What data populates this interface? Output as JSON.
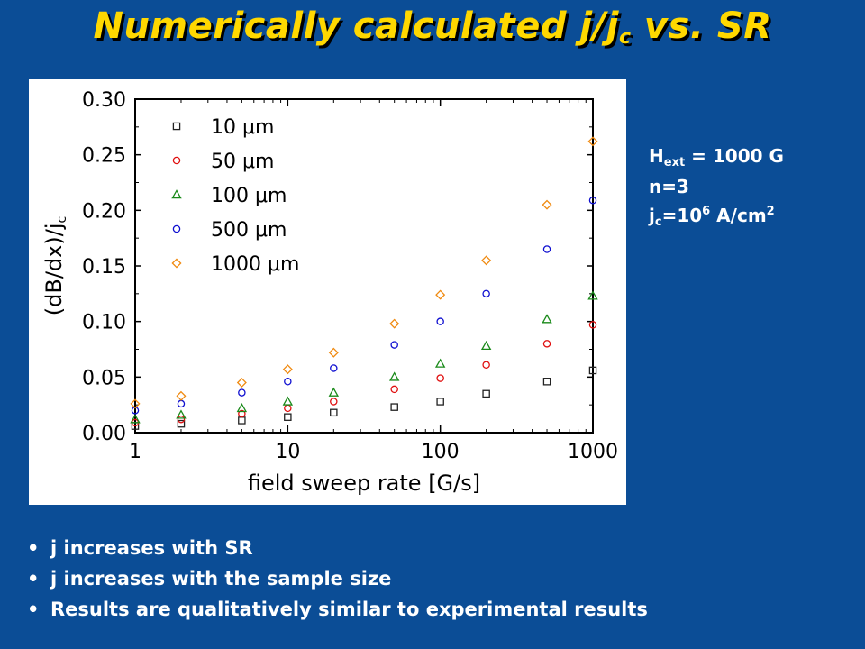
{
  "title": {
    "main": "Numerically calculated j/j",
    "sub": "c",
    "tail": " vs. SR"
  },
  "params": {
    "hext_prefix": "H",
    "hext_sub": "ext",
    "hext_value": " = 1000 G",
    "n_line": "n=3",
    "jc_prefix": "j",
    "jc_sub": "c",
    "jc_mid": "=10",
    "jc_sup": "6",
    "jc_unit": " A/cm",
    "jc_unit_sup": "2"
  },
  "bullets": [
    "j increases with SR",
    "j increases with the sample size",
    "Results are qualitatively similar to experimental results"
  ],
  "colors": {
    "background": "#0b4d96",
    "title": "#ffd800",
    "text": "#ffffff",
    "series_10": "#222222",
    "series_50": "#e01010",
    "series_100": "#1a8a1a",
    "series_500": "#1010d0",
    "series_1000": "#f08a10"
  },
  "chart_data": {
    "type": "scatter",
    "xscale": "log",
    "xlim": [
      1,
      1000
    ],
    "ylim": [
      0.0,
      0.3
    ],
    "xlabel": "field sweep rate [G/s]",
    "ylabel": "(dB/dx)/j",
    "ylabel_sub": "c",
    "xticks": [
      "1",
      "10",
      "100",
      "1000"
    ],
    "yticks": [
      "0.00",
      "0.05",
      "0.10",
      "0.15",
      "0.20",
      "0.25",
      "0.30"
    ],
    "legend_position": "top-left",
    "series": [
      {
        "name": "10 μm",
        "marker": "square",
        "color": "#222222",
        "x": [
          1,
          2,
          5,
          10,
          20,
          50,
          100,
          200,
          500,
          1000
        ],
        "y": [
          0.006,
          0.008,
          0.011,
          0.014,
          0.018,
          0.023,
          0.028,
          0.035,
          0.046,
          0.056
        ]
      },
      {
        "name": "50 μm",
        "marker": "circle",
        "color": "#e01010",
        "x": [
          1,
          2,
          5,
          10,
          20,
          50,
          100,
          200,
          500,
          1000
        ],
        "y": [
          0.009,
          0.012,
          0.017,
          0.022,
          0.028,
          0.039,
          0.049,
          0.061,
          0.08,
          0.097
        ]
      },
      {
        "name": "100 μm",
        "marker": "triangle",
        "color": "#1a8a1a",
        "x": [
          1,
          2,
          5,
          10,
          20,
          50,
          100,
          200,
          500,
          1000
        ],
        "y": [
          0.012,
          0.016,
          0.022,
          0.028,
          0.036,
          0.05,
          0.062,
          0.078,
          0.102,
          0.123
        ]
      },
      {
        "name": "500 μm",
        "marker": "circle",
        "color": "#1010d0",
        "x": [
          1,
          2,
          5,
          10,
          20,
          50,
          100,
          200,
          500,
          1000
        ],
        "y": [
          0.02,
          0.026,
          0.036,
          0.046,
          0.058,
          0.079,
          0.1,
          0.125,
          0.165,
          0.209
        ]
      },
      {
        "name": "1000 μm",
        "marker": "diamond",
        "color": "#f08a10",
        "x": [
          1,
          2,
          5,
          10,
          20,
          50,
          100,
          200,
          500,
          1000
        ],
        "y": [
          0.026,
          0.033,
          0.045,
          0.057,
          0.072,
          0.098,
          0.124,
          0.155,
          0.205,
          0.262
        ]
      }
    ]
  }
}
